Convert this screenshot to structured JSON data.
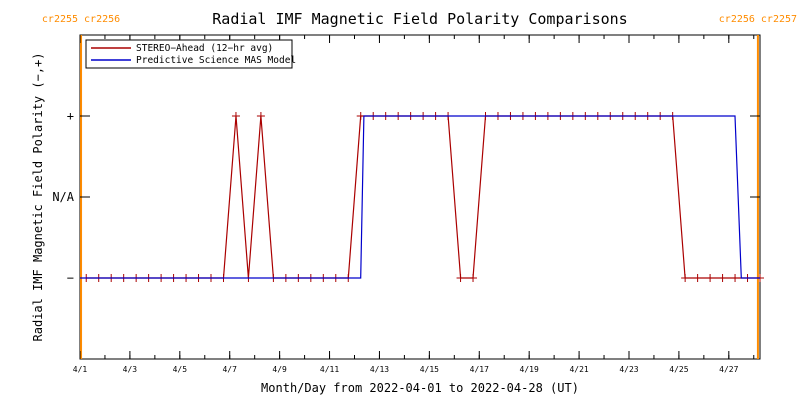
{
  "chart_data": {
    "type": "line",
    "title": "Radial IMF Magnetic Field Polarity Comparisons",
    "xlabel": "Month/Day from 2022-04-01 to 2022-04-28 (UT)",
    "ylabel": "Radial IMF Magnetic Field Polarity (−,+)",
    "x_range": [
      "2022-04-01",
      "2022-04-28T06:00"
    ],
    "x_tick_labels": [
      "4/1",
      "4/3",
      "4/5",
      "4/7",
      "4/9",
      "4/11",
      "4/13",
      "4/15",
      "4/17",
      "4/19",
      "4/21",
      "4/23",
      "4/25",
      "4/27"
    ],
    "x_tick_dates": [
      "2022-04-01",
      "2022-04-03",
      "2022-04-05",
      "2022-04-07",
      "2022-04-09",
      "2022-04-11",
      "2022-04-13",
      "2022-04-15",
      "2022-04-17",
      "2022-04-19",
      "2022-04-21",
      "2022-04-23",
      "2022-04-25",
      "2022-04-27"
    ],
    "y_categories": [
      "−",
      "N/A",
      "+"
    ],
    "y_values": [
      -1,
      0,
      1
    ],
    "ylim": [
      -2,
      2
    ],
    "legend_position": "top-left",
    "grid": false,
    "carrington_rotations": [
      {
        "label_left": "cr2255",
        "label_right": "cr2256",
        "date": "2022-04-01T01:00",
        "color": "#ff8c00"
      },
      {
        "label_left": "cr2256",
        "label_right": "cr2257",
        "date": "2022-04-28T04:00",
        "color": "#ff8c00"
      }
    ],
    "series": [
      {
        "name": "STEREO−Ahead (12−hr avg)",
        "color": "#aa0000",
        "marker": "+",
        "points": [
          [
            "2022-04-01T06:00",
            -1
          ],
          [
            "2022-04-01T18:00",
            -1
          ],
          [
            "2022-04-02T06:00",
            -1
          ],
          [
            "2022-04-02T18:00",
            -1
          ],
          [
            "2022-04-03T06:00",
            -1
          ],
          [
            "2022-04-03T18:00",
            -1
          ],
          [
            "2022-04-04T06:00",
            -1
          ],
          [
            "2022-04-04T18:00",
            -1
          ],
          [
            "2022-04-05T06:00",
            -1
          ],
          [
            "2022-04-05T18:00",
            -1
          ],
          [
            "2022-04-06T06:00",
            -1
          ],
          [
            "2022-04-06T18:00",
            -1
          ],
          [
            "2022-04-07T06:00",
            1
          ],
          [
            "2022-04-07T18:00",
            -1
          ],
          [
            "2022-04-08T06:00",
            1
          ],
          [
            "2022-04-08T18:00",
            -1
          ],
          [
            "2022-04-09T06:00",
            -1
          ],
          [
            "2022-04-09T18:00",
            -1
          ],
          [
            "2022-04-10T06:00",
            -1
          ],
          [
            "2022-04-10T18:00",
            -1
          ],
          [
            "2022-04-11T06:00",
            -1
          ],
          [
            "2022-04-11T18:00",
            -1
          ],
          [
            "2022-04-12T06:00",
            1
          ],
          [
            "2022-04-12T18:00",
            1
          ],
          [
            "2022-04-13T06:00",
            1
          ],
          [
            "2022-04-13T18:00",
            1
          ],
          [
            "2022-04-14T06:00",
            1
          ],
          [
            "2022-04-14T18:00",
            1
          ],
          [
            "2022-04-15T06:00",
            1
          ],
          [
            "2022-04-15T18:00",
            1
          ],
          [
            "2022-04-16T06:00",
            -1
          ],
          [
            "2022-04-16T18:00",
            -1
          ],
          [
            "2022-04-17T06:00",
            1
          ],
          [
            "2022-04-17T18:00",
            1
          ],
          [
            "2022-04-18T06:00",
            1
          ],
          [
            "2022-04-18T18:00",
            1
          ],
          [
            "2022-04-19T06:00",
            1
          ],
          [
            "2022-04-19T18:00",
            1
          ],
          [
            "2022-04-20T06:00",
            1
          ],
          [
            "2022-04-20T18:00",
            1
          ],
          [
            "2022-04-21T06:00",
            1
          ],
          [
            "2022-04-21T18:00",
            1
          ],
          [
            "2022-04-22T06:00",
            1
          ],
          [
            "2022-04-22T18:00",
            1
          ],
          [
            "2022-04-23T06:00",
            1
          ],
          [
            "2022-04-23T18:00",
            1
          ],
          [
            "2022-04-24T06:00",
            1
          ],
          [
            "2022-04-24T18:00",
            1
          ],
          [
            "2022-04-25T06:00",
            -1
          ],
          [
            "2022-04-25T18:00",
            -1
          ],
          [
            "2022-04-26T06:00",
            -1
          ],
          [
            "2022-04-26T18:00",
            -1
          ],
          [
            "2022-04-27T06:00",
            -1
          ],
          [
            "2022-04-27T18:00",
            -1
          ],
          [
            "2022-04-28T06:00",
            -1
          ]
        ]
      },
      {
        "name": "Predictive Science MAS Model",
        "color": "#0000cc",
        "marker": "none",
        "points": [
          [
            "2022-04-01",
            -1
          ],
          [
            "2022-04-12T06:00",
            -1
          ],
          [
            "2022-04-12T09:00",
            1
          ],
          [
            "2022-04-27T06:00",
            1
          ],
          [
            "2022-04-27T12:00",
            -1
          ],
          [
            "2022-04-28T06:00",
            -1
          ]
        ]
      }
    ]
  }
}
